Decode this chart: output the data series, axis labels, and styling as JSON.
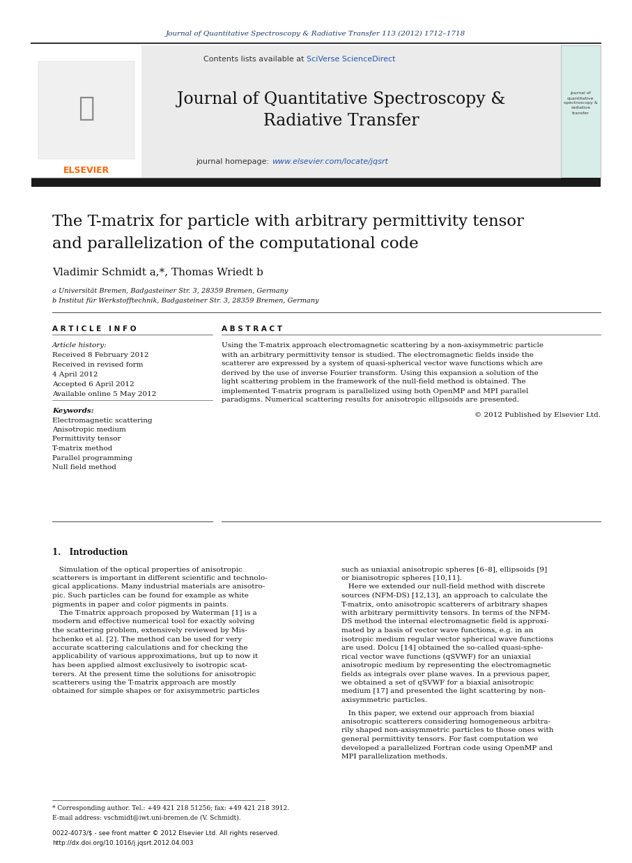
{
  "bg_color": "#ffffff",
  "header_journal_text": "Journal of Quantitative Spectroscopy & Radiative Transfer 113 (2012) 1712–1718",
  "header_journal_color": "#1a3a6b",
  "contents_text": "Contents lists available at ",
  "sciverse_text": "SciVerse ScienceDirect",
  "sciverse_color": "#2255aa",
  "journal_title_line1": "Journal of Quantitative Spectroscopy &",
  "journal_title_line2": "Radiative Transfer",
  "homepage_text": "journal homepage: ",
  "homepage_url": "www.elsevier.com/locate/jqsrt",
  "homepage_url_color": "#2255aa",
  "article_title_line1": "The T-matrix for particle with arbitrary permittivity tensor",
  "article_title_line2": "and parallelization of the computational code",
  "authors": "Vladimir Schmidt a,*, Thomas Wriedt b",
  "affil_a": "a Universität Bremen, Badgasteiner Str. 3, 28359 Bremen, Germany",
  "affil_b": "b Institut für Werkstofftechnik, Badgasteiner Str. 3, 28359 Bremen, Germany",
  "article_info_header": "A R T I C L E   I N F O",
  "abstract_header": "A B S T R A C T",
  "article_history_label": "Article history:",
  "received1": "Received 8 February 2012",
  "received2": "Received in revised form",
  "received2b": "4 April 2012",
  "accepted": "Accepted 6 April 2012",
  "available": "Available online 5 May 2012",
  "keywords_label": "Keywords:",
  "keywords": [
    "Electromagnetic scattering",
    "Anisotropic medium",
    "Permittivity tensor",
    "T-matrix method",
    "Parallel programming",
    "Null field method"
  ],
  "abstract_lines": [
    "Using the T-matrix approach electromagnetic scattering by a non-axisymmetric particle",
    "with an arbitrary permittivity tensor is studied. The electromagnetic fields inside the",
    "scatterer are expressed by a system of quasi-spherical vector wave functions which are",
    "derived by the use of inverse Fourier transform. Using this expansion a solution of the",
    "light scattering problem in the framework of the null-field method is obtained. The",
    "implemented T-matrix program is parallelized using both OpenMP and MPI parallel",
    "paradigms. Numerical scattering results for anisotropic ellipsoids are presented."
  ],
  "copyright": "© 2012 Published by Elsevier Ltd.",
  "intro_header": "1.   Introduction",
  "intro_col1_lines": [
    "   Simulation of the optical properties of anisotropic",
    "scatterers is important in different scientific and technolo-",
    "gical applications. Many industrial materials are anisotro-",
    "pic. Such particles can be found for example as white",
    "pigments in paper and color pigments in paints.",
    "   The T-matrix approach proposed by Waterman [1] is a",
    "modern and effective numerical tool for exactly solving",
    "the scattering problem, extensively reviewed by Mis-",
    "hchenko et al. [2]. The method can be used for very",
    "accurate scattering calculations and for checking the",
    "applicability of various approximations, but up to now it",
    "has been applied almost exclusively to isotropic scat-",
    "terers. At the present time the solutions for anisotropic",
    "scatterers using the T-matrix approach are mostly",
    "obtained for simple shapes or for axisymmetric particles"
  ],
  "intro_col2_lines": [
    "such as uniaxial anisotropic spheres [6–8], ellipsoids [9]",
    "or bianisotropic spheres [10,11].",
    "   Here we extended our null-field method with discrete",
    "sources (NFM-DS) [12,13], an approach to calculate the",
    "T-matrix, onto anisotropic scatterers of arbitrary shapes",
    "with arbitrary permittivity tensors. In terms of the NFM-",
    "DS method the internal electromagnetic field is approxi-",
    "mated by a basis of vector wave functions, e.g. in an",
    "isotropic medium regular vector spherical wave functions",
    "are used. Dolcu [14] obtained the so-called quasi-sphe-",
    "rical vector wave functions (qSVWF) for an uniaxial",
    "anisotropic medium by representing the electromagnetic",
    "fields as integrals over plane waves. In a previous paper,",
    "we obtained a set of qSVWF for a biaxial anisotropic",
    "medium [17] and presented the light scattering by non-",
    "axisymmetric particles.",
    "   In this paper, we extend our approach from biaxial",
    "anisotropic scatterers considering homogeneous arbitra-",
    "rily shaped non-axisymmetric particles to those ones with",
    "general permittivity tensors. For fast computation we",
    "developed a parallelized Fortran code using OpenMP and",
    "MPI parallelization methods."
  ],
  "footnote1": "* Corresponding author. Tel.: +49 421 218 51256; fax: +49 421 218 3912.",
  "footnote2": "E-mail address: vschmidt@iwt.uni-bremen.de (V. Schmidt).",
  "footer1": "0022-4073/$ - see front matter © 2012 Elsevier Ltd. All rights reserved.",
  "footer2": "http://dx.doi.org/10.1016/j.jqsrt.2012.04.003",
  "elsevier_color": "#FF6600",
  "small_logo_bg": "#d8ece8",
  "small_logo_text": "journal of\nquantitative\nspectroscopy &\nradiative\ntransfer"
}
